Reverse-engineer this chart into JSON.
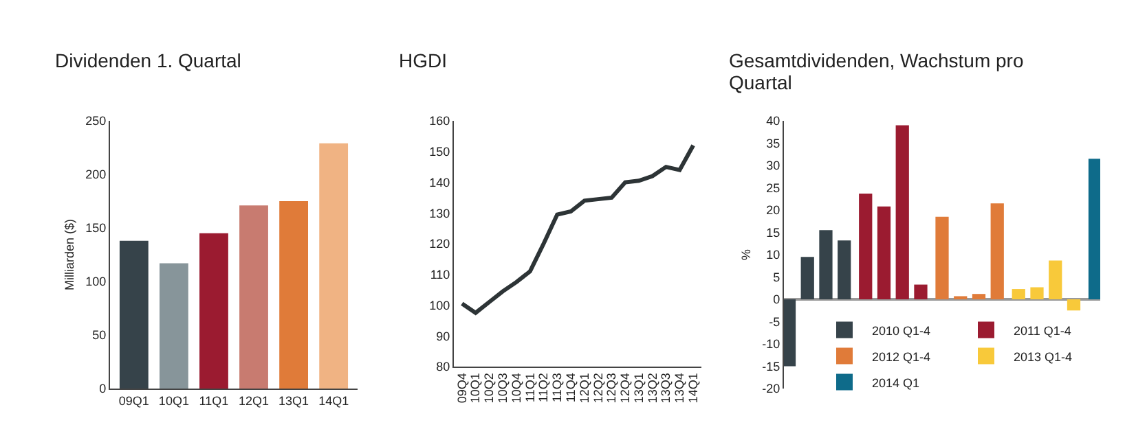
{
  "chart_data": [
    {
      "type": "bar",
      "title": "Dividenden 1. Quartal",
      "ylabel": "Milliarden ($)",
      "categories": [
        "09Q1",
        "10Q1",
        "11Q1",
        "12Q1",
        "13Q1",
        "14Q1"
      ],
      "values": [
        138,
        117,
        145,
        171,
        175,
        229
      ],
      "colors": [
        "#36434a",
        "#87959a",
        "#9b1b30",
        "#c87b70",
        "#e07b39",
        "#f0b383"
      ],
      "ylim": [
        0,
        250
      ],
      "yticks": [
        0,
        50,
        100,
        150,
        200,
        250
      ]
    },
    {
      "type": "line",
      "title": "HGDI",
      "categories": [
        "09Q4",
        "10Q1",
        "10Q2",
        "10Q3",
        "10Q4",
        "11Q1",
        "11Q2",
        "11Q3",
        "11Q4",
        "12Q1",
        "12Q2",
        "12Q3",
        "12Q4",
        "13Q1",
        "13Q2",
        "13Q3",
        "13Q4",
        "14Q1"
      ],
      "series": [
        {
          "color": "#2d3436",
          "values": [
            100.5,
            97.5,
            101,
            104.5,
            107.5,
            111,
            120,
            129.5,
            130.5,
            134,
            134.5,
            135,
            140,
            140.5,
            142,
            145,
            144,
            152
          ]
        }
      ],
      "ylim": [
        80,
        160
      ],
      "yticks": [
        80,
        90,
        100,
        110,
        120,
        130,
        140,
        150,
        160
      ]
    },
    {
      "type": "bar",
      "title": "Gesamtdividenden, Wachstum pro Quartal",
      "ylabel": "%",
      "categories": [
        null,
        null,
        null,
        null,
        null,
        null,
        null,
        null,
        null,
        null,
        null,
        null,
        null,
        null,
        null,
        null,
        null
      ],
      "series": [
        {
          "name": "2010 Q1-4",
          "color": "#36434a",
          "values": [
            -15,
            9.5,
            15.5,
            13.2,
            null,
            null,
            null,
            null,
            null,
            null,
            null,
            null,
            null,
            null,
            null,
            null,
            null
          ]
        },
        {
          "name": "2011 Q1-4",
          "color": "#9b1b30",
          "values": [
            null,
            null,
            null,
            null,
            23.7,
            20.8,
            39,
            3.3,
            null,
            null,
            null,
            null,
            null,
            null,
            null,
            null,
            null
          ]
        },
        {
          "name": "2012 Q1-4",
          "color": "#e07b39",
          "values": [
            null,
            null,
            null,
            null,
            null,
            null,
            null,
            null,
            18.5,
            0.7,
            1.2,
            21.5,
            null,
            null,
            null,
            null,
            null
          ]
        },
        {
          "name": "2013 Q1-4",
          "color": "#f8c93a",
          "values": [
            null,
            null,
            null,
            null,
            null,
            null,
            null,
            null,
            null,
            null,
            null,
            null,
            2.3,
            2.7,
            8.7,
            -2.5,
            null
          ]
        },
        {
          "name": "2014 Q1",
          "color": "#0e6b8a",
          "values": [
            null,
            null,
            null,
            null,
            null,
            null,
            null,
            null,
            null,
            null,
            null,
            null,
            null,
            null,
            null,
            null,
            31.5
          ]
        }
      ],
      "ylim": [
        -20,
        40
      ],
      "yticks": [
        -20,
        -15,
        -10,
        -5,
        0,
        5,
        10,
        15,
        20,
        25,
        30,
        35,
        40
      ],
      "legend": "bottom right",
      "tick_labels": "y"
    }
  ]
}
